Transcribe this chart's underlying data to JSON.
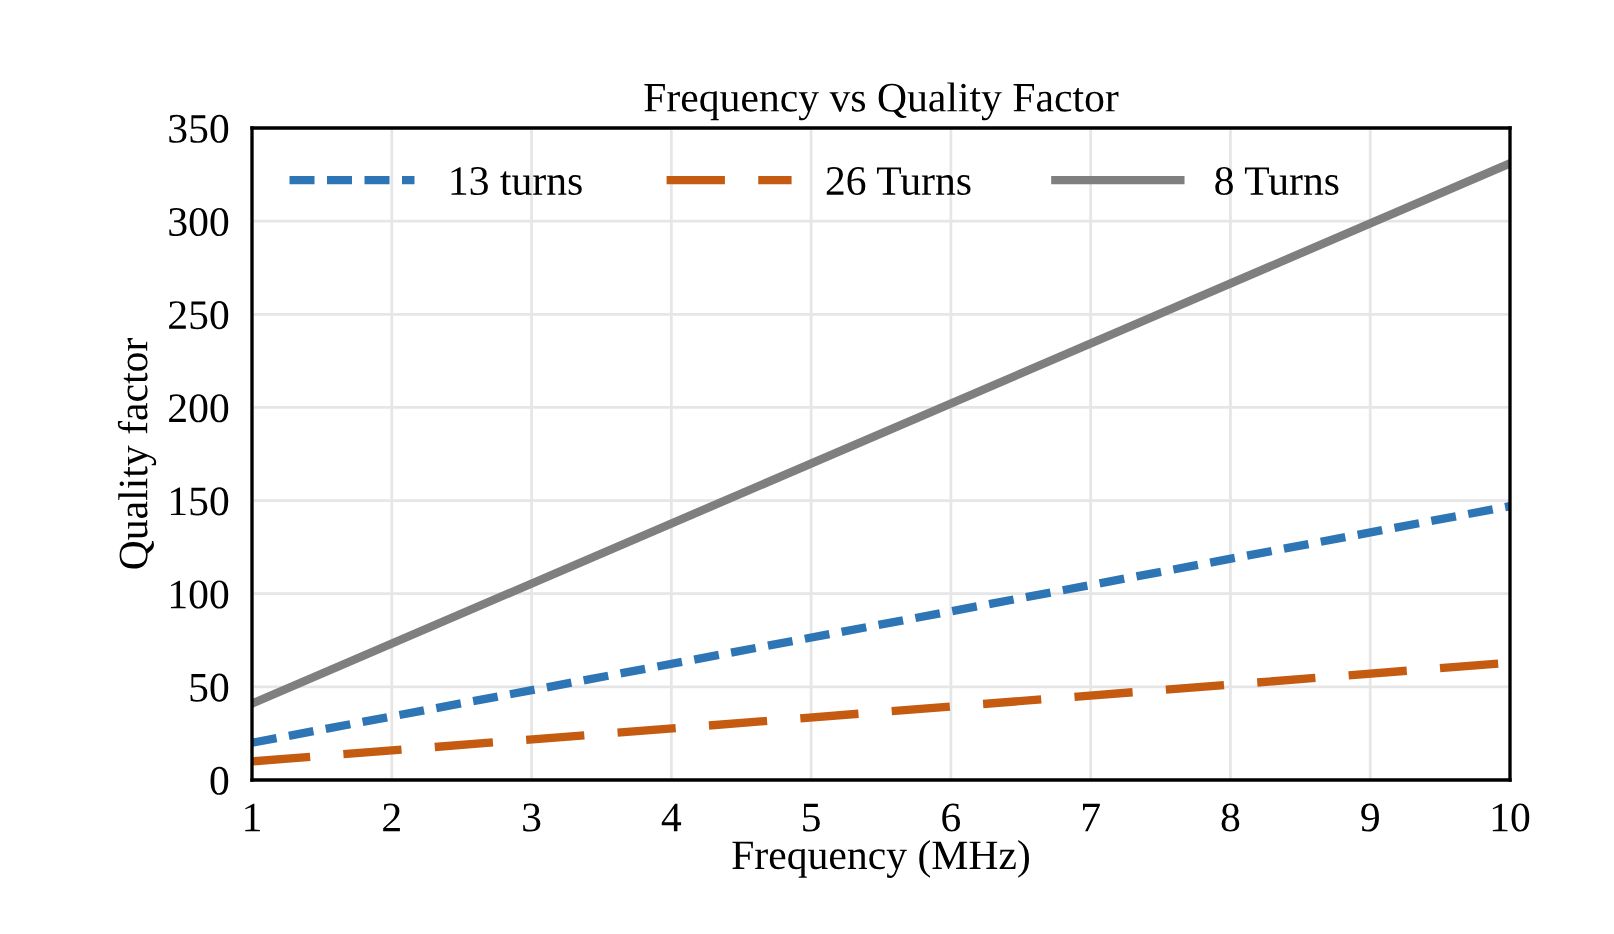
{
  "chart_data": {
    "type": "line",
    "title": "Frequency vs Quality Factor",
    "xlabel": "Frequency (MHz)",
    "ylabel": "Quality factor",
    "x": [
      1,
      10
    ],
    "series": [
      {
        "name": "13 turns",
        "color": "#2e75b6",
        "values": [
          20,
          147
        ],
        "line_style": "dotted"
      },
      {
        "name": "26 Turns",
        "color": "#c55a11",
        "values": [
          10,
          63
        ],
        "line_style": "dashed"
      },
      {
        "name": "8 Turns",
        "color": "#7f7f7f",
        "values": [
          41,
          331
        ],
        "line_style": "solid"
      }
    ],
    "xlim": [
      1,
      10
    ],
    "xticks": [
      1,
      2,
      3,
      4,
      5,
      6,
      7,
      8,
      9,
      10
    ],
    "ylim": [
      0,
      350
    ],
    "yticks": [
      0,
      50,
      100,
      150,
      200,
      250,
      300,
      350
    ],
    "grid": true,
    "legend": "top left",
    "marker": "none"
  }
}
